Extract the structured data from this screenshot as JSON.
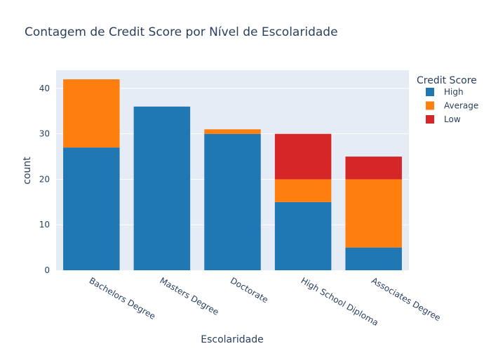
{
  "chart_data": {
    "type": "bar",
    "stacked": true,
    "title": "Contagem de Credit Score por Nível de Escolaridade",
    "xlabel": "Escolaridade",
    "ylabel": "count",
    "ylim": [
      0,
      44
    ],
    "yticks": [
      0,
      10,
      20,
      30,
      40
    ],
    "grid": true,
    "legend_position": "top-right",
    "legend_title": "Credit Score",
    "categories": [
      "Bachelors Degree",
      "Masters Degree",
      "Doctorate",
      "High School Diploma",
      "Associates Degree"
    ],
    "series": [
      {
        "name": "High",
        "color": "#1f77b4",
        "values": [
          27,
          36,
          30,
          15,
          5
        ]
      },
      {
        "name": "Average",
        "color": "#ff7f0e",
        "values": [
          15,
          0,
          1,
          5,
          15
        ]
      },
      {
        "name": "Low",
        "color": "#d62728",
        "values": [
          0,
          0,
          0,
          10,
          5
        ]
      }
    ],
    "plot_background": "#e5ecf6",
    "grid_color": "#ffffff"
  }
}
